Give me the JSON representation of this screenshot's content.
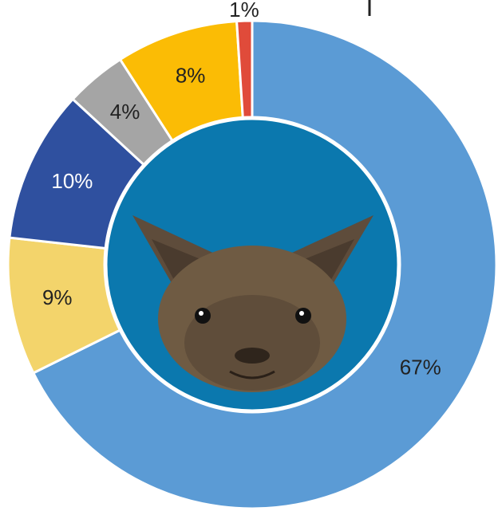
{
  "chart_data": {
    "type": "pie",
    "donut": true,
    "values": [
      67,
      9,
      10,
      4,
      8,
      1
    ],
    "value_labels": [
      "67%",
      "9%",
      "10%",
      "4%",
      "8%",
      "1%"
    ],
    "colors": [
      "#5b9bd5",
      "#f3d46b",
      "#2f509f",
      "#a5a5a5",
      "#fbbc05",
      "#e04b3a"
    ],
    "label_colors": [
      "#222222",
      "#222222",
      "#ffffff",
      "#222222",
      "#222222",
      "#222222"
    ]
  }
}
